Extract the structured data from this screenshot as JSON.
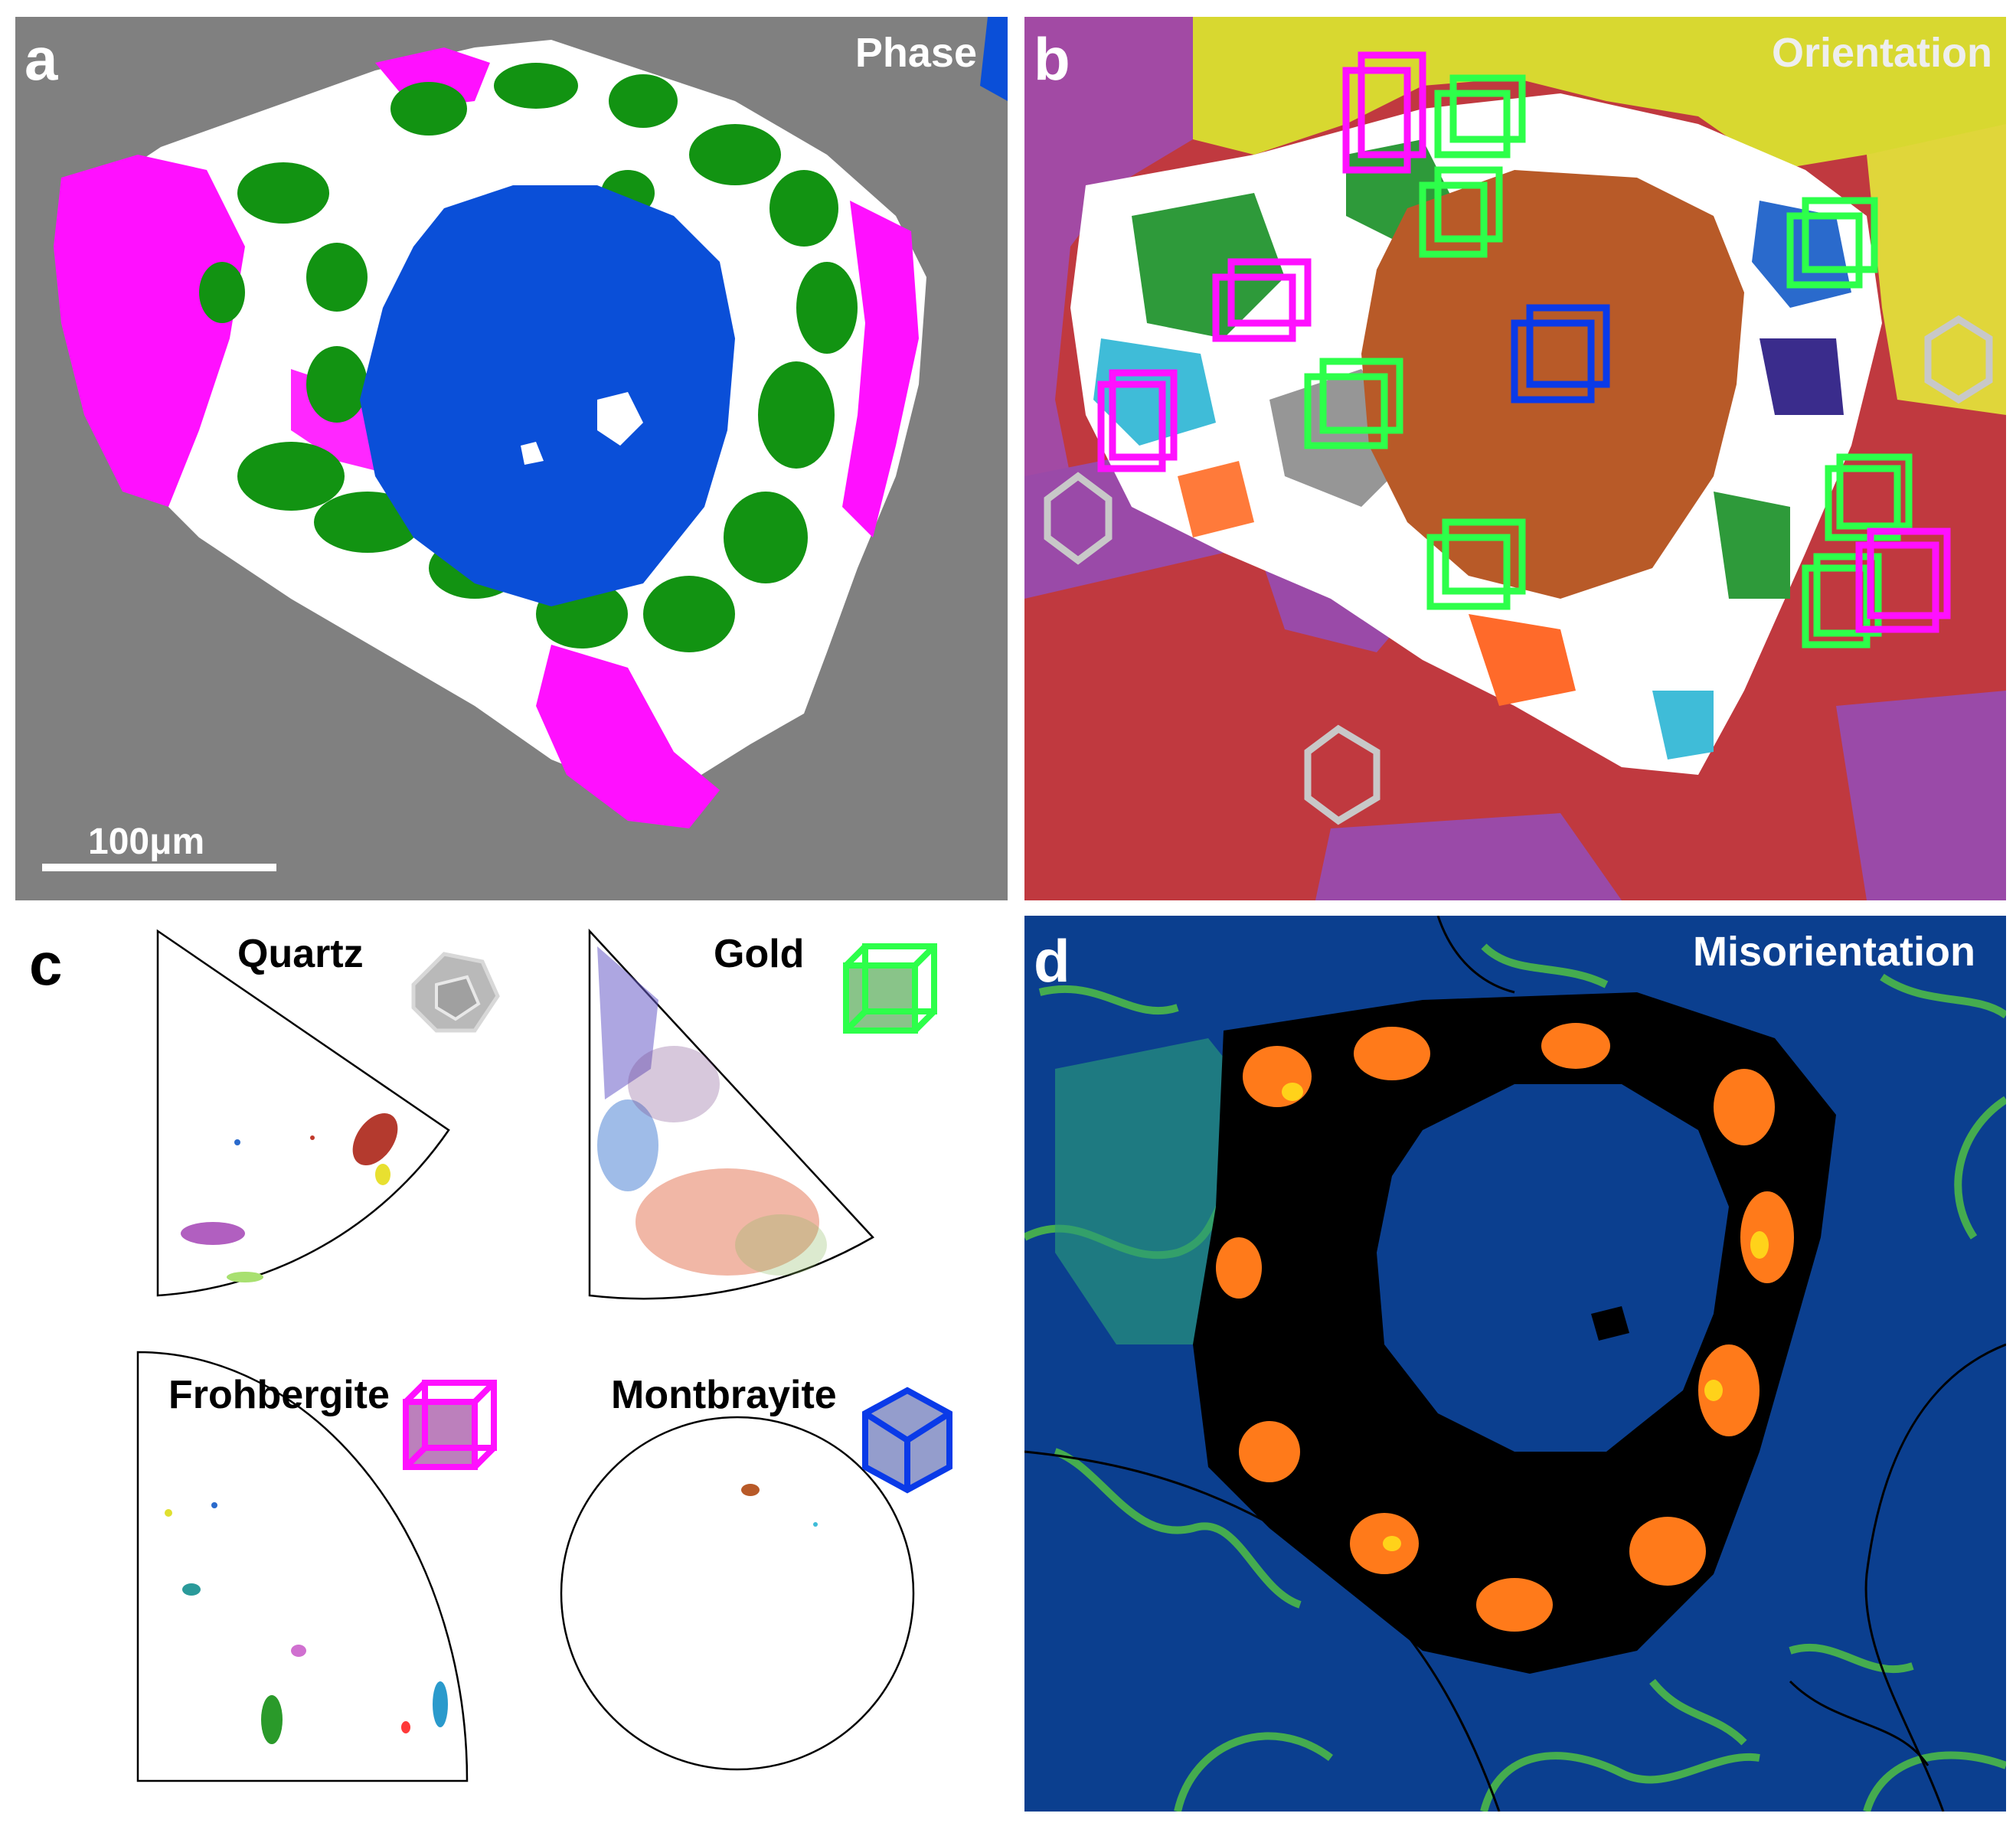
{
  "panels": {
    "a": {
      "label": "a",
      "title": "Phase",
      "scalebar": "100μm"
    },
    "b": {
      "label": "b",
      "title": "Orientation"
    },
    "c": {
      "label": "c",
      "ipf": [
        {
          "name": "Quartz"
        },
        {
          "name": "Gold"
        },
        {
          "name": "Frohbergite"
        },
        {
          "name": "Montbrayite"
        }
      ]
    },
    "d": {
      "label": "d",
      "title": "Misorientation"
    }
  },
  "colors": {
    "background_gray": "#808080",
    "montbrayite_blue": "#0a4fd8",
    "gold_green": "#129312",
    "frohbergite_magenta": "#ff10ff",
    "misorientation_bg": "#0b3f8f",
    "orientation_red": "#c0393f",
    "orientation_yellow": "#d8d830",
    "orientation_brown": "#b85a28"
  },
  "icons": [
    "quartz-crystal-icon",
    "gold-cube-icon",
    "frohbergite-cube-icon",
    "montbrayite-cube-icon"
  ]
}
